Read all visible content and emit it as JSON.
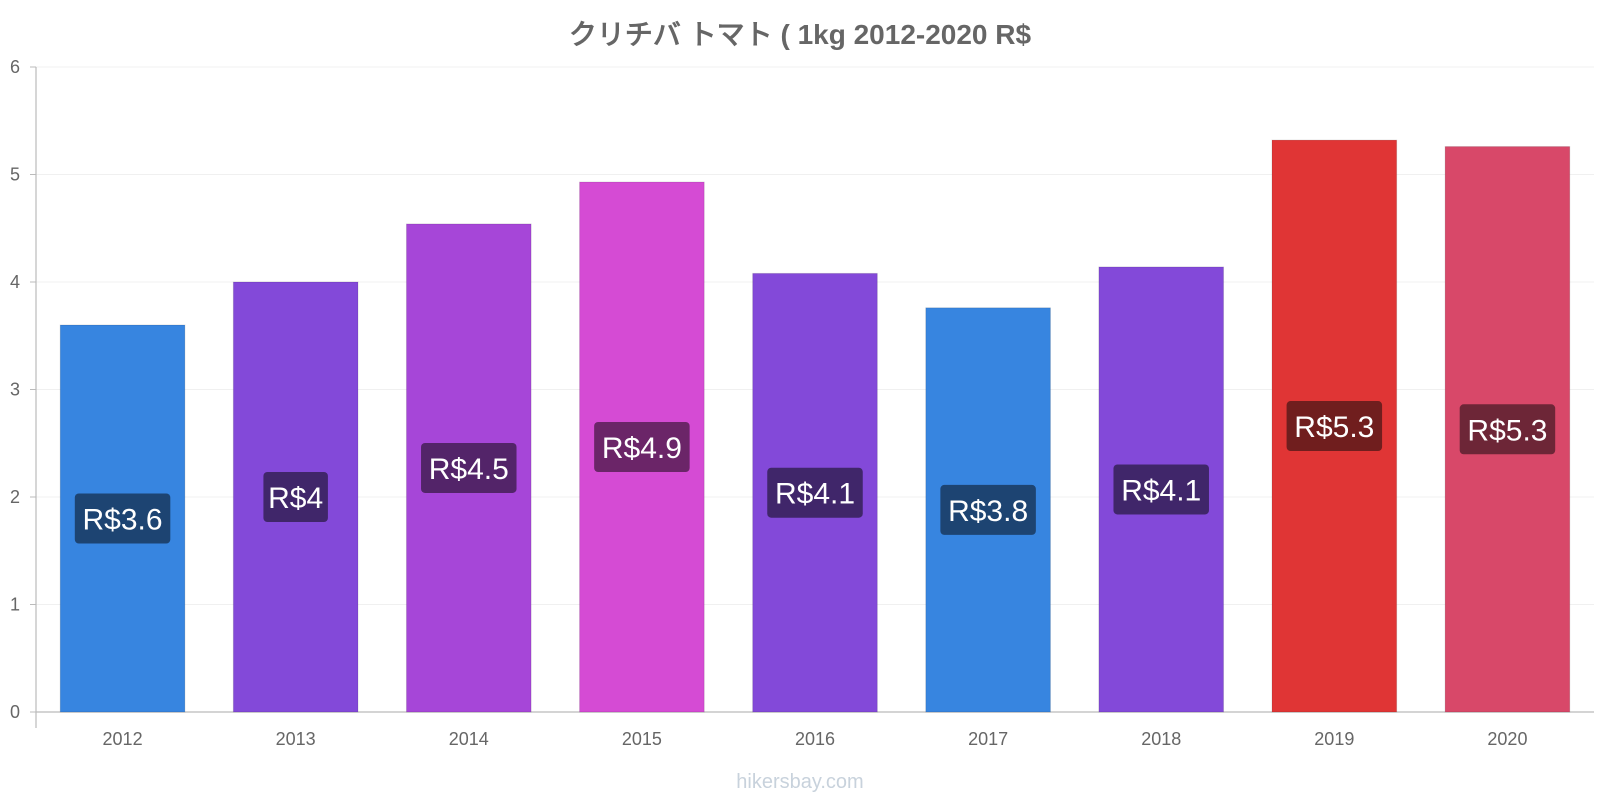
{
  "chart_data": {
    "type": "bar",
    "title": "クリチバ トマト ( 1kg 2012-2020 R$",
    "xlabel": "",
    "ylabel": "",
    "ylim": [
      0,
      6
    ],
    "yticks": [
      0,
      1,
      2,
      3,
      4,
      5,
      6
    ],
    "grid": true,
    "categories": [
      "2012",
      "2013",
      "2014",
      "2015",
      "2016",
      "2017",
      "2018",
      "2019",
      "2020"
    ],
    "values": [
      3.6,
      4.0,
      4.54,
      4.93,
      4.08,
      3.76,
      4.14,
      5.32,
      5.26
    ],
    "labels": [
      "R$3.6",
      "R$4",
      "R$4.5",
      "R$4.9",
      "R$4.1",
      "R$3.8",
      "R$4.1",
      "R$5.3",
      "R$5.3"
    ],
    "bar_colors": [
      "#3785e0",
      "#8349d9",
      "#a646d8",
      "#d54bd4",
      "#8349d9",
      "#3785e0",
      "#8349d9",
      "#e03535",
      "#d84869"
    ],
    "label_bg_colors": [
      "#1d4472",
      "#40266a",
      "#532469",
      "#6b2568",
      "#40266a",
      "#1d4472",
      "#40266a",
      "#701e1e",
      "#6d2637"
    ]
  },
  "watermark": "hikersbay.com"
}
